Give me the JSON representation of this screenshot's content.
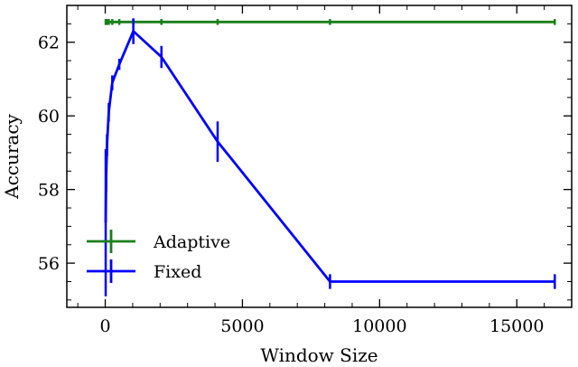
{
  "chart_data": {
    "type": "line",
    "title": "",
    "xlabel": "Window Size",
    "ylabel": "Accuracy",
    "xlim": [
      -1400,
      17000
    ],
    "ylim": [
      54.8,
      63.0
    ],
    "xticks": [
      0,
      5000,
      10000,
      15000
    ],
    "xtick_labels": [
      "0",
      "5000",
      "10000",
      "15000"
    ],
    "yticks": [
      56,
      58,
      60,
      62
    ],
    "ytick_labels": [
      "56",
      "58",
      "60",
      "62"
    ],
    "grid": false,
    "legend_position": "lower-left",
    "series": [
      {
        "name": "Adaptive",
        "color": "#1a7f1a",
        "x": [
          16,
          32,
          64,
          128,
          256,
          512,
          1024,
          2048,
          4096,
          8192,
          16384
        ],
        "y": [
          62.55,
          62.55,
          62.55,
          62.55,
          62.55,
          62.55,
          62.55,
          62.55,
          62.55,
          62.55,
          62.55
        ],
        "err": [
          0.08,
          0.08,
          0.08,
          0.08,
          0.08,
          0.08,
          0.08,
          0.08,
          0.08,
          0.08,
          0.08
        ]
      },
      {
        "name": "Fixed",
        "color": "#0000ff",
        "x": [
          16,
          32,
          64,
          128,
          256,
          512,
          1024,
          2048,
          4096,
          8192,
          16384
        ],
        "y": [
          57.1,
          58.3,
          59.2,
          60.1,
          60.9,
          61.4,
          62.3,
          61.6,
          59.3,
          55.5,
          55.5
        ],
        "err": [
          2.0,
          0.35,
          0.3,
          0.25,
          0.2,
          0.15,
          0.35,
          0.3,
          0.55,
          0.2,
          0.2
        ]
      }
    ]
  }
}
